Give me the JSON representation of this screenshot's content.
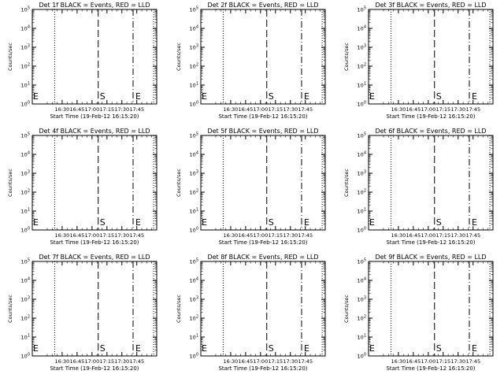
{
  "chart_data": [
    {
      "type": "line",
      "title": "Det 1f BLACK = Events, RED = LLD",
      "ylabel": "Counts/sec",
      "xlabel": "Start Time (19-Feb-12 16:15:20)",
      "x_tick_labels": [
        "16:30",
        "16:45",
        "17:00",
        "17:15",
        "17:30",
        "17:45"
      ],
      "y_scale": "log",
      "y_tick_labels": [
        {
          "base": "10",
          "exp": "0"
        },
        {
          "base": "10",
          "exp": "1"
        },
        {
          "base": "10",
          "exp": "2"
        },
        {
          "base": "10",
          "exp": "3"
        },
        {
          "base": "10",
          "exp": "4"
        },
        {
          "base": "10",
          "exp": "5"
        }
      ],
      "markers": [
        "E",
        "S",
        "E"
      ],
      "series": []
    },
    {
      "type": "line",
      "title": "Det 2f BLACK = Events, RED = LLD",
      "ylabel": "Counts/sec",
      "xlabel": "Start Time (19-Feb-12 16:15:20)",
      "x_tick_labels": [
        "16:30",
        "16:45",
        "17:00",
        "17:15",
        "17:30",
        "17:45"
      ],
      "y_scale": "log",
      "y_tick_labels": [
        {
          "base": "10",
          "exp": "0"
        },
        {
          "base": "10",
          "exp": "1"
        },
        {
          "base": "10",
          "exp": "2"
        },
        {
          "base": "10",
          "exp": "3"
        },
        {
          "base": "10",
          "exp": "4"
        },
        {
          "base": "10",
          "exp": "5"
        }
      ],
      "markers": [
        "E",
        "S",
        "E"
      ],
      "series": []
    },
    {
      "type": "line",
      "title": "Det 3f BLACK = Events, RED = LLD",
      "ylabel": "Counts/sec",
      "xlabel": "Start Time (19-Feb-12 16:15:20)",
      "x_tick_labels": [
        "16:30",
        "16:45",
        "17:00",
        "17:15",
        "17:30",
        "17:45"
      ],
      "y_scale": "log",
      "y_tick_labels": [
        {
          "base": "10",
          "exp": "0"
        },
        {
          "base": "10",
          "exp": "1"
        },
        {
          "base": "10",
          "exp": "2"
        },
        {
          "base": "10",
          "exp": "3"
        },
        {
          "base": "10",
          "exp": "4"
        },
        {
          "base": "10",
          "exp": "5"
        }
      ],
      "markers": [
        "E",
        "S",
        "E"
      ],
      "series": []
    },
    {
      "type": "line",
      "title": "Det 4f BLACK = Events, RED = LLD",
      "ylabel": "Counts/sec",
      "xlabel": "Start Time (19-Feb-12 16:15:20)",
      "x_tick_labels": [
        "16:30",
        "16:45",
        "17:00",
        "17:15",
        "17:30",
        "17:45"
      ],
      "y_scale": "log",
      "y_tick_labels": [
        {
          "base": "10",
          "exp": "0"
        },
        {
          "base": "10",
          "exp": "1"
        },
        {
          "base": "10",
          "exp": "2"
        },
        {
          "base": "10",
          "exp": "3"
        },
        {
          "base": "10",
          "exp": "4"
        },
        {
          "base": "10",
          "exp": "5"
        }
      ],
      "markers": [
        "E",
        "S",
        "E"
      ],
      "series": []
    },
    {
      "type": "line",
      "title": "Det 5f BLACK = Events, RED = LLD",
      "ylabel": "Counts/sec",
      "xlabel": "Start Time (19-Feb-12 16:15:20)",
      "x_tick_labels": [
        "16:30",
        "16:45",
        "17:00",
        "17:15",
        "17:30",
        "17:45"
      ],
      "y_scale": "log",
      "y_tick_labels": [
        {
          "base": "10",
          "exp": "0"
        },
        {
          "base": "10",
          "exp": "1"
        },
        {
          "base": "10",
          "exp": "2"
        },
        {
          "base": "10",
          "exp": "3"
        },
        {
          "base": "10",
          "exp": "4"
        },
        {
          "base": "10",
          "exp": "5"
        }
      ],
      "markers": [
        "E",
        "S",
        "E"
      ],
      "series": []
    },
    {
      "type": "line",
      "title": "Det 6f BLACK = Events, RED = LLD",
      "ylabel": "Counts/sec",
      "xlabel": "Start Time (19-Feb-12 16:15:20)",
      "x_tick_labels": [
        "16:30",
        "16:45",
        "17:00",
        "17:15",
        "17:30",
        "17:45"
      ],
      "y_scale": "log",
      "y_tick_labels": [
        {
          "base": "10",
          "exp": "0"
        },
        {
          "base": "10",
          "exp": "1"
        },
        {
          "base": "10",
          "exp": "2"
        },
        {
          "base": "10",
          "exp": "3"
        },
        {
          "base": "10",
          "exp": "4"
        },
        {
          "base": "10",
          "exp": "5"
        }
      ],
      "markers": [
        "E",
        "S",
        "E"
      ],
      "series": []
    },
    {
      "type": "line",
      "title": "Det 7f BLACK = Events, RED = LLD",
      "ylabel": "Counts/sec",
      "xlabel": "Start Time (19-Feb-12 16:15:20)",
      "x_tick_labels": [
        "16:30",
        "16:45",
        "17:00",
        "17:15",
        "17:30",
        "17:45"
      ],
      "y_scale": "log",
      "y_tick_labels": [
        {
          "base": "10",
          "exp": "0"
        },
        {
          "base": "10",
          "exp": "1"
        },
        {
          "base": "10",
          "exp": "2"
        },
        {
          "base": "10",
          "exp": "3"
        },
        {
          "base": "10",
          "exp": "4"
        },
        {
          "base": "10",
          "exp": "5"
        }
      ],
      "markers": [
        "E",
        "S",
        "E"
      ],
      "series": []
    },
    {
      "type": "line",
      "title": "Det 8f BLACK = Events, RED = LLD",
      "ylabel": "Counts/sec",
      "xlabel": "Start Time (19-Feb-12 16:15:20)",
      "x_tick_labels": [
        "16:30",
        "16:45",
        "17:00",
        "17:15",
        "17:30",
        "17:45"
      ],
      "y_scale": "log",
      "y_tick_labels": [
        {
          "base": "10",
          "exp": "0"
        },
        {
          "base": "10",
          "exp": "1"
        },
        {
          "base": "10",
          "exp": "2"
        },
        {
          "base": "10",
          "exp": "3"
        },
        {
          "base": "10",
          "exp": "4"
        },
        {
          "base": "10",
          "exp": "5"
        }
      ],
      "markers": [
        "E",
        "S",
        "E"
      ],
      "series": []
    },
    {
      "type": "line",
      "title": "Det 9f BLACK = Events, RED = LLD",
      "ylabel": "Counts/sec",
      "xlabel": "Start Time (19-Feb-12 16:15:20)",
      "x_tick_labels": [
        "16:30",
        "16:45",
        "17:00",
        "17:15",
        "17:30",
        "17:45"
      ],
      "y_scale": "log",
      "y_tick_labels": [
        {
          "base": "10",
          "exp": "0"
        },
        {
          "base": "10",
          "exp": "1"
        },
        {
          "base": "10",
          "exp": "2"
        },
        {
          "base": "10",
          "exp": "3"
        },
        {
          "base": "10",
          "exp": "4"
        },
        {
          "base": "10",
          "exp": "5"
        }
      ],
      "markers": [
        "E",
        "S",
        "E"
      ],
      "series": []
    }
  ],
  "colors": {
    "events": "#000000",
    "lld": "#ff0000",
    "axes": "#000000",
    "background": "#ffffff"
  }
}
